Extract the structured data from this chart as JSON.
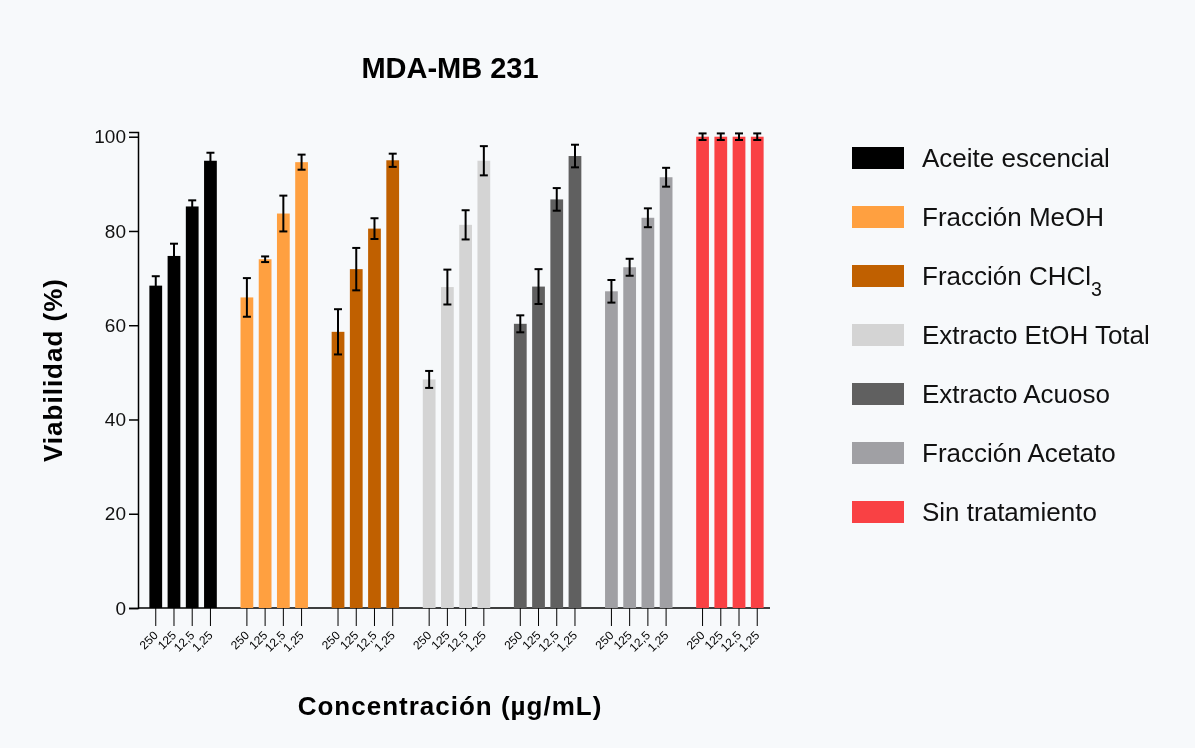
{
  "chart_data": {
    "type": "bar",
    "title": "MDA-MB 231",
    "xlabel": "Concentración (µg/mL)",
    "ylabel": "Viabilidad (%)",
    "categories": [
      "250",
      "125",
      "12,5",
      "1,25",
      null,
      "250",
      "125",
      "12,5",
      "1,25",
      null,
      "250",
      "125",
      "12,5",
      "1,25",
      null,
      "250",
      "125",
      "12,5",
      "1,25",
      null,
      "250",
      "125",
      "12,5",
      "1,25",
      null,
      "250",
      "125",
      "12,5",
      "1,25",
      null,
      "250",
      "125",
      "12,5",
      "1,25"
    ],
    "series": [
      {
        "name": "Aceite escencial",
        "color": "#000000",
        "values": [
          68.4,
          74.7,
          85.2,
          94.9,
          null,
          null,
          null,
          null,
          null,
          null,
          null,
          null,
          null,
          null,
          null,
          null,
          null,
          null,
          null,
          null,
          null,
          null,
          null,
          null,
          null,
          null,
          null,
          null,
          null,
          null,
          null,
          null,
          null,
          null
        ],
        "errors": [
          2.0,
          2.6,
          1.3,
          1.7,
          null,
          null,
          null,
          null,
          null,
          null,
          null,
          null,
          null,
          null,
          null,
          null,
          null,
          null,
          null,
          null,
          null,
          null,
          null,
          null,
          null,
          null,
          null,
          null,
          null,
          null,
          null,
          null,
          null,
          null
        ]
      },
      {
        "name": "Fracción MeOH",
        "color": "#ffa040",
        "values": [
          null,
          null,
          null,
          null,
          null,
          65.9,
          74.0,
          83.7,
          94.6,
          null,
          null,
          null,
          null,
          null,
          null,
          null,
          null,
          null,
          null,
          null,
          null,
          null,
          null,
          null,
          null,
          null,
          null,
          null,
          null,
          null,
          null,
          null,
          null,
          null
        ],
        "errors": [
          null,
          null,
          null,
          null,
          null,
          4.1,
          0.6,
          3.8,
          1.6,
          null,
          null,
          null,
          null,
          null,
          null,
          null,
          null,
          null,
          null,
          null,
          null,
          null,
          null,
          null,
          null,
          null,
          null,
          null,
          null,
          null,
          null,
          null,
          null,
          null
        ]
      },
      {
        "name": "Fracción CHCl$_{3}$",
        "color": "#c06000",
        "values": [
          null,
          null,
          null,
          null,
          null,
          null,
          null,
          null,
          null,
          null,
          58.6,
          71.9,
          80.5,
          95.0,
          null,
          null,
          null,
          null,
          null,
          null,
          null,
          null,
          null,
          null,
          null,
          null,
          null,
          null,
          null,
          null,
          null,
          null,
          null,
          null
        ],
        "errors": [
          null,
          null,
          null,
          null,
          null,
          null,
          null,
          null,
          null,
          null,
          4.8,
          4.5,
          2.2,
          1.4,
          null,
          null,
          null,
          null,
          null,
          null,
          null,
          null,
          null,
          null,
          null,
          null,
          null,
          null,
          null,
          null,
          null,
          null,
          null,
          null
        ]
      },
      {
        "name": "Extracto EtOH Total",
        "color": "#d4d4d4",
        "values": [
          null,
          null,
          null,
          null,
          null,
          null,
          null,
          null,
          null,
          null,
          null,
          null,
          null,
          null,
          null,
          48.5,
          68.1,
          81.3,
          94.9,
          null,
          null,
          null,
          null,
          null,
          null,
          null,
          null,
          null,
          null,
          null,
          null,
          null,
          null,
          null
        ],
        "errors": [
          null,
          null,
          null,
          null,
          null,
          null,
          null,
          null,
          null,
          null,
          null,
          null,
          null,
          null,
          null,
          1.8,
          3.7,
          3.1,
          3.1,
          null,
          null,
          null,
          null,
          null,
          null,
          null,
          null,
          null,
          null,
          null,
          null,
          null,
          null,
          null
        ]
      },
      {
        "name": "Extracto Acuoso",
        "color": "#606060",
        "values": [
          null,
          null,
          null,
          null,
          null,
          null,
          null,
          null,
          null,
          null,
          null,
          null,
          null,
          null,
          null,
          null,
          null,
          null,
          null,
          null,
          60.3,
          68.2,
          86.7,
          95.9,
          null,
          null,
          null,
          null,
          null,
          null,
          null,
          null,
          null,
          null
        ],
        "errors": [
          null,
          null,
          null,
          null,
          null,
          null,
          null,
          null,
          null,
          null,
          null,
          null,
          null,
          null,
          null,
          null,
          null,
          null,
          null,
          null,
          1.8,
          3.7,
          2.4,
          2.4,
          null,
          null,
          null,
          null,
          null,
          null,
          null,
          null,
          null,
          null
        ]
      },
      {
        "name": "Fracción Acetato",
        "color": "#a0a0a4",
        "values": [
          null,
          null,
          null,
          null,
          null,
          null,
          null,
          null,
          null,
          null,
          null,
          null,
          null,
          null,
          null,
          null,
          null,
          null,
          null,
          null,
          null,
          null,
          null,
          null,
          null,
          67.2,
          72.3,
          82.8,
          91.4,
          null,
          null,
          null,
          null,
          null
        ],
        "errors": [
          null,
          null,
          null,
          null,
          null,
          null,
          null,
          null,
          null,
          null,
          null,
          null,
          null,
          null,
          null,
          null,
          null,
          null,
          null,
          null,
          null,
          null,
          null,
          null,
          null,
          2.4,
          1.8,
          2.0,
          2.0,
          null,
          null,
          null,
          null,
          null
        ]
      },
      {
        "name": "Sin tratamiento",
        "color": "#f94144",
        "values": [
          null,
          null,
          null,
          null,
          null,
          null,
          null,
          null,
          null,
          null,
          null,
          null,
          null,
          null,
          null,
          null,
          null,
          null,
          null,
          null,
          null,
          null,
          null,
          null,
          null,
          null,
          null,
          null,
          null,
          null,
          100,
          100,
          100,
          100
        ],
        "errors": [
          null,
          null,
          null,
          null,
          null,
          null,
          null,
          null,
          null,
          null,
          null,
          null,
          null,
          null,
          null,
          null,
          null,
          null,
          null,
          null,
          null,
          null,
          null,
          null,
          null,
          null,
          null,
          null,
          null,
          null,
          0.7,
          0.7,
          0.7,
          0.7
        ]
      }
    ],
    "ylim": [
      0,
      101
    ],
    "yticks": [
      0,
      20,
      40,
      60,
      80,
      100
    ],
    "legend": "right"
  }
}
